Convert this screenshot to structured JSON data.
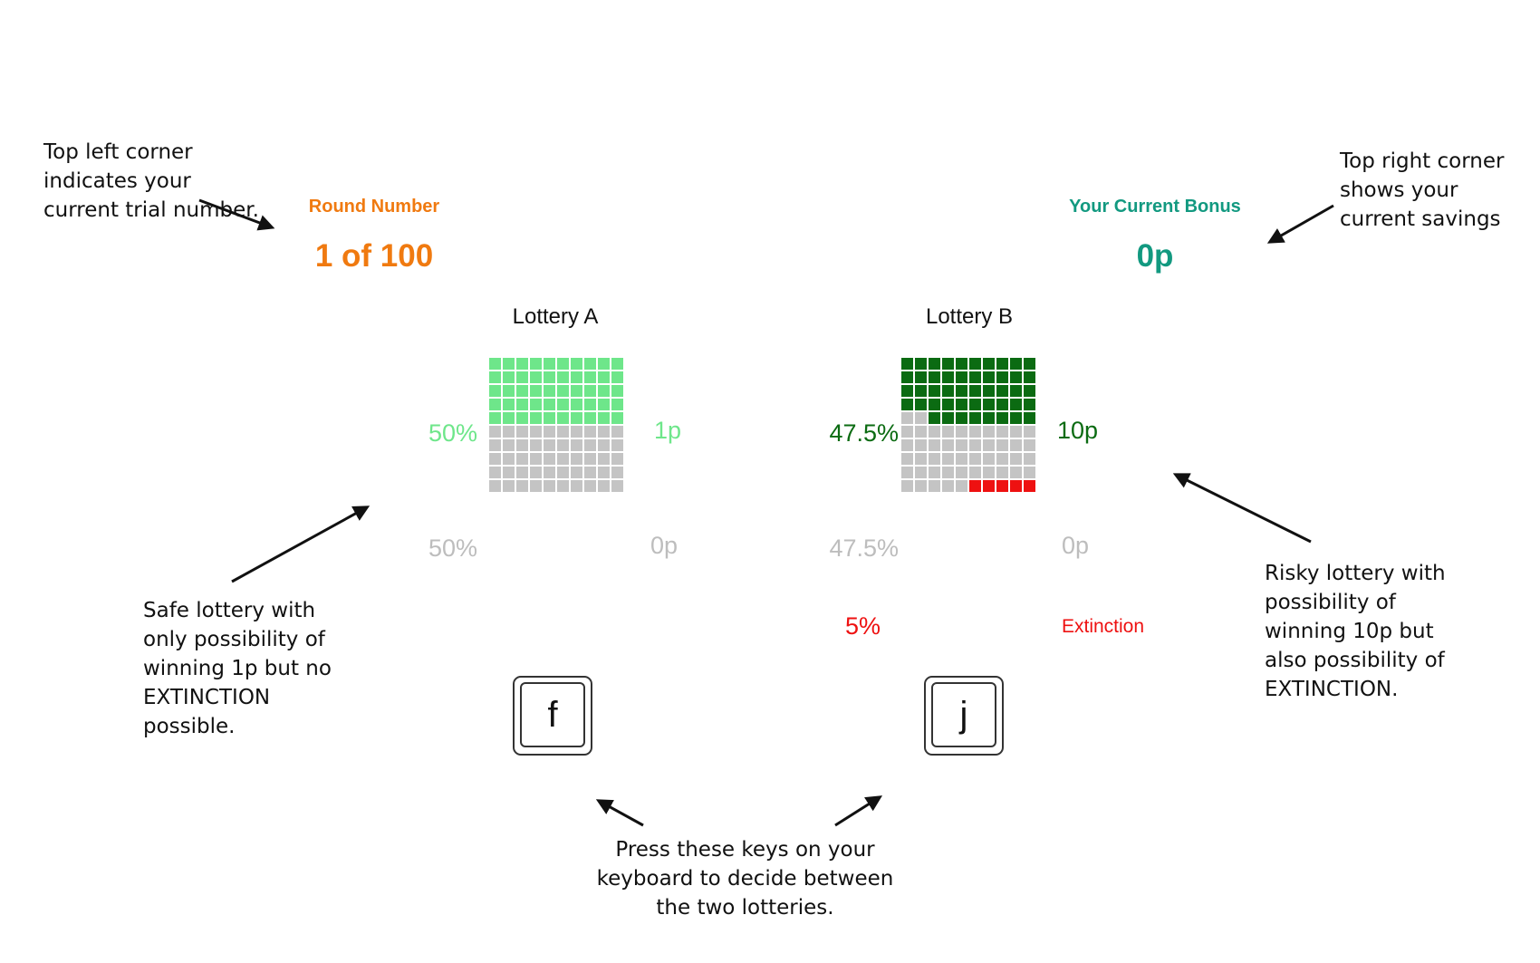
{
  "annotations": {
    "top_left": "Top left corner indicates your current trial number.",
    "top_right": "Top right corner shows your current savings",
    "safe": "Safe lottery with only possibility of winning 1p but no EXTINCTION possible.",
    "risky": "Risky lottery with possibility of winning 10p but also possibility of EXTINCTION.",
    "keys": "Press these keys on your keyboard to decide between the two lotteries."
  },
  "header": {
    "round_label": "Round Number",
    "round_value": "1 of 100",
    "bonus_label": "Your Current Bonus",
    "bonus_value": "0p"
  },
  "lotteries": [
    {
      "title": "Lottery A",
      "key": "f",
      "win_pct": "50%",
      "win_amount": "1p",
      "lose_pct": "50%",
      "lose_amount": "0p",
      "win_cells": 50,
      "lose_cells": 50,
      "extinction_cells": 0,
      "win_color": "#6ee68a"
    },
    {
      "title": "Lottery B",
      "key": "j",
      "win_pct": "47.5%",
      "win_amount": "10p",
      "lose_pct": "47.5%",
      "lose_amount": "0p",
      "ext_pct": "5%",
      "ext_label": "Extinction",
      "win_cells": 47.5,
      "lose_cells": 47.5,
      "extinction_cells": 5,
      "win_color": "#0b6b12"
    }
  ],
  "colors": {
    "round": "#f07a10",
    "bonus": "#129980",
    "loss_cell": "#c4c4c4",
    "loss_text": "#bdbdbd",
    "extinction": "#ee1111"
  }
}
